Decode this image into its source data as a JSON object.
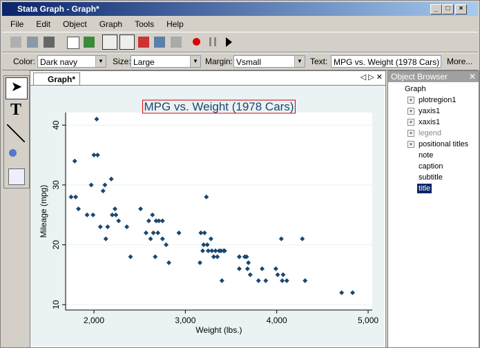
{
  "window": {
    "title": "Stata Graph - Graph*"
  },
  "menu": [
    "File",
    "Edit",
    "Object",
    "Graph",
    "Tools",
    "Help"
  ],
  "properties": {
    "color_label": "Color:",
    "color": "Dark navy",
    "size_label": "Size:",
    "size": "Large",
    "margin_label": "Margin:",
    "margin": "Vsmall",
    "text_label": "Text:",
    "text": "MPG vs. Weight (1978 Cars)",
    "more": "More..."
  },
  "tab": "Graph*",
  "object_browser": {
    "title": "Object Browser",
    "root": "Graph",
    "items": [
      "plotregion1",
      "yaxis1",
      "xaxis1",
      "legend",
      "positional titles",
      "note",
      "caption",
      "subtitle",
      "title"
    ]
  },
  "chart_data": {
    "type": "scatter",
    "title": "MPG vs. Weight (1978 Cars)",
    "x_label": "Weight (lbs.)",
    "y_label": "Mileage (mpg)",
    "color": "#1a476f",
    "grid": true,
    "xlim": [
      1690,
      5045
    ],
    "ylim": [
      9.1,
      42.1
    ],
    "xticks": [
      {
        "value": 2000,
        "label": "2,000"
      },
      {
        "value": 3000,
        "label": "3,000"
      },
      {
        "value": 4000,
        "label": "4,000"
      },
      {
        "value": 5000,
        "label": "5,000"
      }
    ],
    "yticks": [
      10,
      20,
      30,
      40
    ],
    "x": [
      1750,
      1800,
      1790,
      1830,
      1925,
      1970,
      1990,
      2000,
      2040,
      2030,
      2070,
      2100,
      2120,
      2130,
      2150,
      2190,
      2200,
      2230,
      2240,
      2270,
      2360,
      2400,
      2510,
      2570,
      2600,
      2620,
      2640,
      2650,
      2670,
      2680,
      2700,
      2710,
      2750,
      2750,
      2790,
      2820,
      2930,
      3160,
      3170,
      3190,
      3200,
      3210,
      3230,
      3240,
      3250,
      3280,
      3290,
      3310,
      3330,
      3350,
      3370,
      3390,
      3400,
      3420,
      3430,
      3590,
      3590,
      3650,
      3670,
      3680,
      3690,
      3710,
      3800,
      3840,
      3880,
      3990,
      4010,
      4050,
      4060,
      4070,
      4110,
      4280,
      4310,
      4710,
      4830
    ],
    "values": [
      28,
      28,
      34,
      26,
      25,
      30,
      25,
      35,
      35,
      41,
      23,
      29,
      30,
      21,
      23,
      31,
      25,
      26,
      25,
      24,
      23,
      18,
      26,
      22,
      24,
      21,
      25,
      22,
      18,
      24,
      22,
      24,
      24,
      21,
      20,
      17,
      22,
      17,
      22,
      19,
      20,
      22,
      28,
      20,
      19,
      21,
      19,
      18,
      19,
      18,
      19,
      19,
      14,
      19,
      19,
      18,
      16,
      18,
      18,
      16,
      17,
      15,
      14,
      16,
      14,
      16,
      15,
      21,
      14,
      15,
      14,
      21,
      14,
      12,
      12
    ]
  }
}
